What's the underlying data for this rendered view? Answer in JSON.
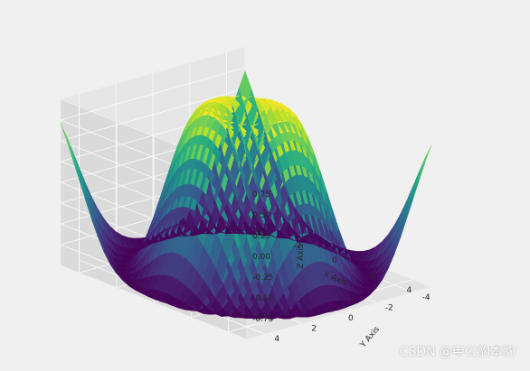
{
  "chart_data": {
    "type": "surface3d",
    "title": "",
    "xlabel": "X Axis",
    "ylabel": "Y Axis",
    "zlabel": "Z Axis",
    "x_range": [
      -5,
      5
    ],
    "y_range": [
      -5,
      5
    ],
    "z_range": [
      -1,
      1
    ],
    "x_ticks": [
      "-4",
      "-2",
      "0",
      "2",
      "4"
    ],
    "y_ticks": [
      "-4",
      "-2",
      "0",
      "2",
      "4"
    ],
    "z_ticks": [
      "-0.75",
      "-0.50",
      "-0.25",
      "0.00",
      "0.25",
      "0.50",
      "0.75"
    ],
    "grid": true,
    "colormap": "viridis",
    "function": "z = sin(sqrt(x^2 + y^2))",
    "grid_steps": 30
  },
  "watermark": "CSDN @申公豹本豹"
}
